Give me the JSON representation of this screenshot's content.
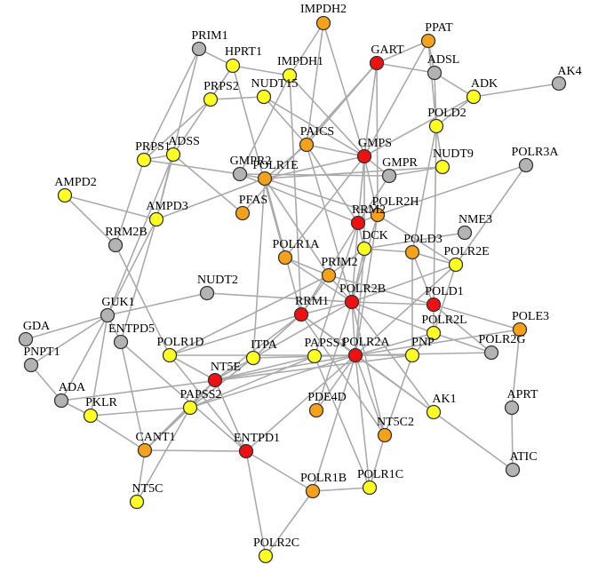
{
  "colors": {
    "red": "#ee1111",
    "orange": "#f5a11a",
    "yellow": "#ffff22",
    "gray": "#b3b3b3",
    "edge": "#aaaaaa"
  },
  "nodes": [
    {
      "id": "IMPDH2",
      "label": "IMPDH2",
      "color": "orange"
    },
    {
      "id": "PPAT",
      "label": "PPAT",
      "color": "orange"
    },
    {
      "id": "PRIM1",
      "label": "PRIM1",
      "color": "gray"
    },
    {
      "id": "GART",
      "label": "GART",
      "color": "red"
    },
    {
      "id": "HPRT1",
      "label": "HPRT1",
      "color": "yellow"
    },
    {
      "id": "ADSL",
      "label": "ADSL",
      "color": "gray"
    },
    {
      "id": "IMPDH1",
      "label": "IMPDH1",
      "color": "yellow"
    },
    {
      "id": "AK4",
      "label": "AK4",
      "color": "gray"
    },
    {
      "id": "ADK",
      "label": "ADK",
      "color": "yellow"
    },
    {
      "id": "PRPS2",
      "label": "PRPS2",
      "color": "yellow"
    },
    {
      "id": "NUDT15",
      "label": "NUDT15",
      "color": "yellow"
    },
    {
      "id": "POLD2",
      "label": "POLD2",
      "color": "yellow"
    },
    {
      "id": "PAICS",
      "label": "PAICS",
      "color": "orange"
    },
    {
      "id": "GMPS",
      "label": "GMPS",
      "color": "red"
    },
    {
      "id": "PRPS1",
      "label": "PRPS1",
      "color": "yellow"
    },
    {
      "id": "ADSS",
      "label": "ADSS",
      "color": "yellow"
    },
    {
      "id": "NUDT9",
      "label": "NUDT9",
      "color": "yellow"
    },
    {
      "id": "POLR3A",
      "label": "POLR3A",
      "color": "gray"
    },
    {
      "id": "GMPR2",
      "label": "GMPR2",
      "color": "gray"
    },
    {
      "id": "POLR1E",
      "label": "POLR1E",
      "color": "orange"
    },
    {
      "id": "GMPR",
      "label": "GMPR",
      "color": "gray"
    },
    {
      "id": "AMPD2",
      "label": "AMPD2",
      "color": "yellow"
    },
    {
      "id": "PFAS",
      "label": "PFAS",
      "color": "orange"
    },
    {
      "id": "POLR2H",
      "label": "POLR2H",
      "color": "orange"
    },
    {
      "id": "AMPD3",
      "label": "AMPD3",
      "color": "yellow"
    },
    {
      "id": "RRM2",
      "label": "RRM2",
      "color": "red"
    },
    {
      "id": "NME3",
      "label": "NME3",
      "color": "gray"
    },
    {
      "id": "RRM2B",
      "label": "RRM2B",
      "color": "gray"
    },
    {
      "id": "DCK",
      "label": "DCK",
      "color": "yellow"
    },
    {
      "id": "POLD3",
      "label": "POLD3",
      "color": "orange"
    },
    {
      "id": "POLR2E",
      "label": "POLR2E",
      "color": "yellow"
    },
    {
      "id": "POLR1A",
      "label": "POLR1A",
      "color": "orange"
    },
    {
      "id": "PRIM2",
      "label": "PRIM2",
      "color": "orange"
    },
    {
      "id": "NUDT2",
      "label": "NUDT2",
      "color": "gray"
    },
    {
      "id": "POLR2B",
      "label": "POLR2B",
      "color": "red"
    },
    {
      "id": "POLD1",
      "label": "POLD1",
      "color": "red"
    },
    {
      "id": "RRM1",
      "label": "RRM1",
      "color": "red"
    },
    {
      "id": "GUK1",
      "label": "GUK1",
      "color": "gray"
    },
    {
      "id": "POLR2L",
      "label": "POLR2L",
      "color": "yellow"
    },
    {
      "id": "POLE3",
      "label": "POLE3",
      "color": "orange"
    },
    {
      "id": "ENTPD5",
      "label": "ENTPD5",
      "color": "gray"
    },
    {
      "id": "GDA",
      "label": "GDA",
      "color": "gray"
    },
    {
      "id": "POLR1D",
      "label": "POLR1D",
      "color": "yellow"
    },
    {
      "id": "POLR2G",
      "label": "POLR2G",
      "color": "gray"
    },
    {
      "id": "PNP",
      "label": "PNP",
      "color": "yellow"
    },
    {
      "id": "POLR2A",
      "label": "POLR2A",
      "color": "red"
    },
    {
      "id": "ITPA",
      "label": "ITPA",
      "color": "yellow"
    },
    {
      "id": "PAPSS1",
      "label": "PAPSS1",
      "color": "yellow"
    },
    {
      "id": "NT5E",
      "label": "NT5E",
      "color": "red"
    },
    {
      "id": "PNPT1",
      "label": "PNPT1",
      "color": "gray"
    },
    {
      "id": "ADA",
      "label": "ADA",
      "color": "gray"
    },
    {
      "id": "PAPSS2",
      "label": "PAPSS2",
      "color": "yellow"
    },
    {
      "id": "PKLR",
      "label": "PKLR",
      "color": "yellow"
    },
    {
      "id": "AK1",
      "label": "AK1",
      "color": "yellow"
    },
    {
      "id": "APRT",
      "label": "APRT",
      "color": "gray"
    },
    {
      "id": "PDE4D",
      "label": "PDE4D",
      "color": "orange"
    },
    {
      "id": "NT5C2",
      "label": "NT5C2",
      "color": "orange"
    },
    {
      "id": "CANT1",
      "label": "CANT1",
      "color": "orange"
    },
    {
      "id": "ENTPD1",
      "label": "ENTPD1",
      "color": "red"
    },
    {
      "id": "ATIC",
      "label": "ATIC",
      "color": "gray"
    },
    {
      "id": "POLR1C",
      "label": "POLR1C",
      "color": "yellow"
    },
    {
      "id": "POLR1B",
      "label": "POLR1B",
      "color": "orange"
    },
    {
      "id": "NT5C",
      "label": "NT5C",
      "color": "yellow"
    },
    {
      "id": "POLR2C",
      "label": "POLR2C",
      "color": "yellow"
    }
  ],
  "edges": [
    [
      "IMPDH2",
      "IMPDH1"
    ],
    [
      "IMPDH2",
      "PAICS"
    ],
    [
      "IMPDH2",
      "GMPS"
    ],
    [
      "PPAT",
      "GART"
    ],
    [
      "PPAT",
      "GMPS"
    ],
    [
      "PPAT",
      "POLD2"
    ],
    [
      "PPAT",
      "ADSL"
    ],
    [
      "GART",
      "ADSL"
    ],
    [
      "GART",
      "GMPS"
    ],
    [
      "GART",
      "PAICS"
    ],
    [
      "GART",
      "POLR2H"
    ],
    [
      "GART",
      "PFAS"
    ],
    [
      "ADSL",
      "ADK"
    ],
    [
      "ADSL",
      "POLD2"
    ],
    [
      "AK4",
      "ADK"
    ],
    [
      "ADK",
      "POLD2"
    ],
    [
      "ADK",
      "GMPS"
    ],
    [
      "PRIM1",
      "HPRT1"
    ],
    [
      "PRIM1",
      "PRPS1"
    ],
    [
      "PRIM1",
      "AMPD3"
    ],
    [
      "HPRT1",
      "PRPS2"
    ],
    [
      "HPRT1",
      "ADSS"
    ],
    [
      "HPRT1",
      "IMPDH1"
    ],
    [
      "HPRT1",
      "POLR1A"
    ],
    [
      "IMPDH1",
      "GMPR2"
    ],
    [
      "IMPDH1",
      "GMPS"
    ],
    [
      "IMPDH1",
      "RRM1"
    ],
    [
      "PRPS2",
      "PRPS1"
    ],
    [
      "PRPS2",
      "NUDT15"
    ],
    [
      "NUDT15",
      "PAICS"
    ],
    [
      "NUDT15",
      "GMPS"
    ],
    [
      "PAICS",
      "GMPS"
    ],
    [
      "PAICS",
      "POLR1E"
    ],
    [
      "PAICS",
      "RRM2"
    ],
    [
      "PAICS",
      "POLR2B"
    ],
    [
      "GMPS",
      "GMPR"
    ],
    [
      "GMPS",
      "POLR1E"
    ],
    [
      "GMPS",
      "RRM2"
    ],
    [
      "GMPS",
      "DCK"
    ],
    [
      "GMPS",
      "POLR1A"
    ],
    [
      "GMPS",
      "POLR2H"
    ],
    [
      "POLD2",
      "POLD3"
    ],
    [
      "POLD2",
      "POLD1"
    ],
    [
      "POLD2",
      "NUDT9"
    ],
    [
      "NUDT9",
      "POLR1E"
    ],
    [
      "NUDT9",
      "GMPR"
    ],
    [
      "POLR3A",
      "POLR2E"
    ],
    [
      "POLR3A",
      "POLR2H"
    ],
    [
      "PRPS1",
      "ADSS"
    ],
    [
      "PRPS1",
      "RRM2B"
    ],
    [
      "PRPS1",
      "GMPR2"
    ],
    [
      "ADSS",
      "AMPD3"
    ],
    [
      "ADSS",
      "PFAS"
    ],
    [
      "ADSS",
      "GUK1"
    ],
    [
      "GMPR2",
      "GMPR"
    ],
    [
      "GMPR2",
      "POLR1E"
    ],
    [
      "GMPR2",
      "RRM2"
    ],
    [
      "POLR1E",
      "AMPD3"
    ],
    [
      "POLR1E",
      "POLR1A"
    ],
    [
      "POLR1E",
      "POLR2H"
    ],
    [
      "POLR1E",
      "PRIM2"
    ],
    [
      "POLR1E",
      "RRM1"
    ],
    [
      "POLR1E",
      "ITPA"
    ],
    [
      "GMPR",
      "RRM2"
    ],
    [
      "AMPD2",
      "AMPD3"
    ],
    [
      "AMPD2",
      "RRM2B"
    ],
    [
      "AMPD3",
      "GUK1"
    ],
    [
      "AMPD3",
      "ENTPD5"
    ],
    [
      "RRM2B",
      "POLR1D"
    ],
    [
      "POLR2H",
      "RRM2"
    ],
    [
      "POLR2H",
      "POLR2E"
    ],
    [
      "POLR2H",
      "POLR2B"
    ],
    [
      "POLR2H",
      "POLR2A"
    ],
    [
      "RRM2",
      "RRM1"
    ],
    [
      "RRM2",
      "DCK"
    ],
    [
      "RRM2",
      "POLR2B"
    ],
    [
      "RRM2",
      "PAPSS1"
    ],
    [
      "NME3",
      "DCK"
    ],
    [
      "DCK",
      "POLD3"
    ],
    [
      "DCK",
      "PRIM2"
    ],
    [
      "DCK",
      "POLR2B"
    ],
    [
      "DCK",
      "POLR2A"
    ],
    [
      "POLD3",
      "POLD1"
    ],
    [
      "POLD3",
      "POLR2E"
    ],
    [
      "POLD3",
      "PNP"
    ],
    [
      "POLR2E",
      "POLR2B"
    ],
    [
      "POLR2E",
      "POLR2L"
    ],
    [
      "POLR2E",
      "POLR2A"
    ],
    [
      "POLR1A",
      "PRIM2"
    ],
    [
      "POLR1A",
      "POLR2B"
    ],
    [
      "PRIM2",
      "POLR2B"
    ],
    [
      "PRIM2",
      "POLD1"
    ],
    [
      "PRIM2",
      "RRM1"
    ],
    [
      "PRIM2",
      "POLR1D"
    ],
    [
      "NUDT2",
      "GUK1"
    ],
    [
      "NUDT2",
      "POLR2B"
    ],
    [
      "POLR2B",
      "POLD1"
    ],
    [
      "POLR2B",
      "RRM1"
    ],
    [
      "POLR2B",
      "POLR2L"
    ],
    [
      "POLR2B",
      "POLR2A"
    ],
    [
      "POLR2B",
      "PDE4D"
    ],
    [
      "POLR2B",
      "ITPA"
    ],
    [
      "POLR2B",
      "NT5C2"
    ],
    [
      "POLR2B",
      "AK1"
    ],
    [
      "POLD1",
      "POLE3"
    ],
    [
      "POLD1",
      "POLR2L"
    ],
    [
      "POLD1",
      "POLR2G"
    ],
    [
      "RRM1",
      "POLR2A"
    ],
    [
      "RRM1",
      "ITPA"
    ],
    [
      "RRM1",
      "NT5E"
    ],
    [
      "RRM1",
      "POLR1D"
    ],
    [
      "RRM1",
      "NT5C2"
    ],
    [
      "RRM1",
      "AK1"
    ],
    [
      "GUK1",
      "ENTPD5"
    ],
    [
      "GUK1",
      "GDA"
    ],
    [
      "GUK1",
      "PNPT1"
    ],
    [
      "GUK1",
      "ADA"
    ],
    [
      "GUK1",
      "PKLR"
    ],
    [
      "POLR2L",
      "POLR2A"
    ],
    [
      "POLR2L",
      "POLR2G"
    ],
    [
      "POLR2L",
      "PNP"
    ],
    [
      "POLE3",
      "APRT"
    ],
    [
      "POLE3",
      "POLR2A"
    ],
    [
      "ENTPD5",
      "CANT1"
    ],
    [
      "ENTPD5",
      "ENTPD1"
    ],
    [
      "POLR1D",
      "NT5E"
    ],
    [
      "POLR1D",
      "ENTPD1"
    ],
    [
      "POLR1D",
      "POLR2A"
    ],
    [
      "POLR2G",
      "POLR2A"
    ],
    [
      "POLR2A",
      "PNP"
    ],
    [
      "POLR2A",
      "PAPSS1"
    ],
    [
      "POLR2A",
      "ITPA"
    ],
    [
      "POLR2A",
      "NT5E"
    ],
    [
      "POLR2A",
      "PAPSS2"
    ],
    [
      "POLR2A",
      "PDE4D"
    ],
    [
      "POLR2A",
      "AK1"
    ],
    [
      "POLR2A",
      "NT5C2"
    ],
    [
      "POLR2A",
      "POLR1C"
    ],
    [
      "POLR2A",
      "POLR1B"
    ],
    [
      "POLR2A",
      "ENTPD1"
    ],
    [
      "PNP",
      "NT5C2"
    ],
    [
      "PNP",
      "ADA"
    ],
    [
      "ITPA",
      "NT5E"
    ],
    [
      "ITPA",
      "PAPSS2"
    ],
    [
      "PAPSS1",
      "PAPSS2"
    ],
    [
      "PAPSS1",
      "NT5E"
    ],
    [
      "PAPSS1",
      "POLR1C"
    ],
    [
      "NT5E",
      "ENTPD1"
    ],
    [
      "NT5E",
      "PAPSS2"
    ],
    [
      "NT5E",
      "CANT1"
    ],
    [
      "ADA",
      "PNPT1"
    ],
    [
      "ADA",
      "PKLR"
    ],
    [
      "PAPSS2",
      "PKLR"
    ],
    [
      "PAPSS2",
      "CANT1"
    ],
    [
      "PAPSS2",
      "NT5C"
    ],
    [
      "PKLR",
      "CANT1"
    ],
    [
      "AK1",
      "ATIC"
    ],
    [
      "APRT",
      "ATIC"
    ],
    [
      "NT5C2",
      "POLR1C"
    ],
    [
      "CANT1",
      "ENTPD1"
    ],
    [
      "CANT1",
      "NT5C"
    ],
    [
      "ENTPD1",
      "POLR1B"
    ],
    [
      "ENTPD1",
      "POLR2C"
    ],
    [
      "POLR1C",
      "POLR1B"
    ],
    [
      "POLR1B",
      "POLR2C"
    ]
  ]
}
